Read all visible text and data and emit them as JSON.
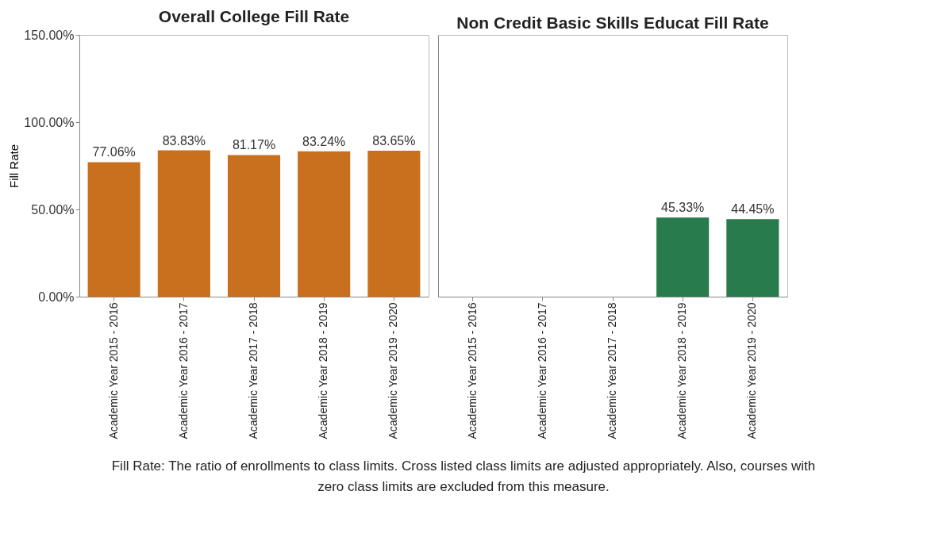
{
  "chart_data": [
    {
      "type": "bar",
      "title": "Overall College Fill Rate",
      "ylabel": "Fill Rate",
      "categories": [
        "Academic Year 2015 - 2016",
        "Academic Year 2016 - 2017",
        "Academic Year 2017 - 2018",
        "Academic Year 2018 - 2019",
        "Academic Year 2019 - 2020"
      ],
      "values": [
        77.06,
        83.83,
        81.17,
        83.24,
        83.65
      ],
      "color": "#c8701e",
      "value_labels": [
        "77.06%",
        "83.83%",
        "81.17%",
        "83.24%",
        "83.65%"
      ],
      "ylim": [
        0,
        150
      ],
      "yticks": [
        {
          "value": 0,
          "label": "0.00%"
        },
        {
          "value": 50,
          "label": "50.00%"
        },
        {
          "value": 100,
          "label": "100.00%"
        },
        {
          "value": 150,
          "label": "150.00%"
        }
      ],
      "grid": false
    },
    {
      "type": "bar",
      "title": "Non Credit Basic Skills Educat Fill Rate",
      "categories": [
        "Academic Year 2015 - 2016",
        "Academic Year 2016 - 2017",
        "Academic Year 2017 - 2018",
        "Academic Year 2018 - 2019",
        "Academic Year 2019 - 2020"
      ],
      "values": [
        null,
        null,
        null,
        45.33,
        44.45
      ],
      "color": "#277b4d",
      "value_labels": [
        null,
        null,
        null,
        "45.33%",
        "44.45%"
      ],
      "ylim": [
        0,
        150
      ],
      "tick_labels": "x",
      "grid": false,
      "annotations": [
        "Fill Rate: The ratio of enrollments to class limits. Cross listed class limits are adjusted appropriately. Also, courses with zero class limits are excluded from this measure."
      ]
    }
  ]
}
